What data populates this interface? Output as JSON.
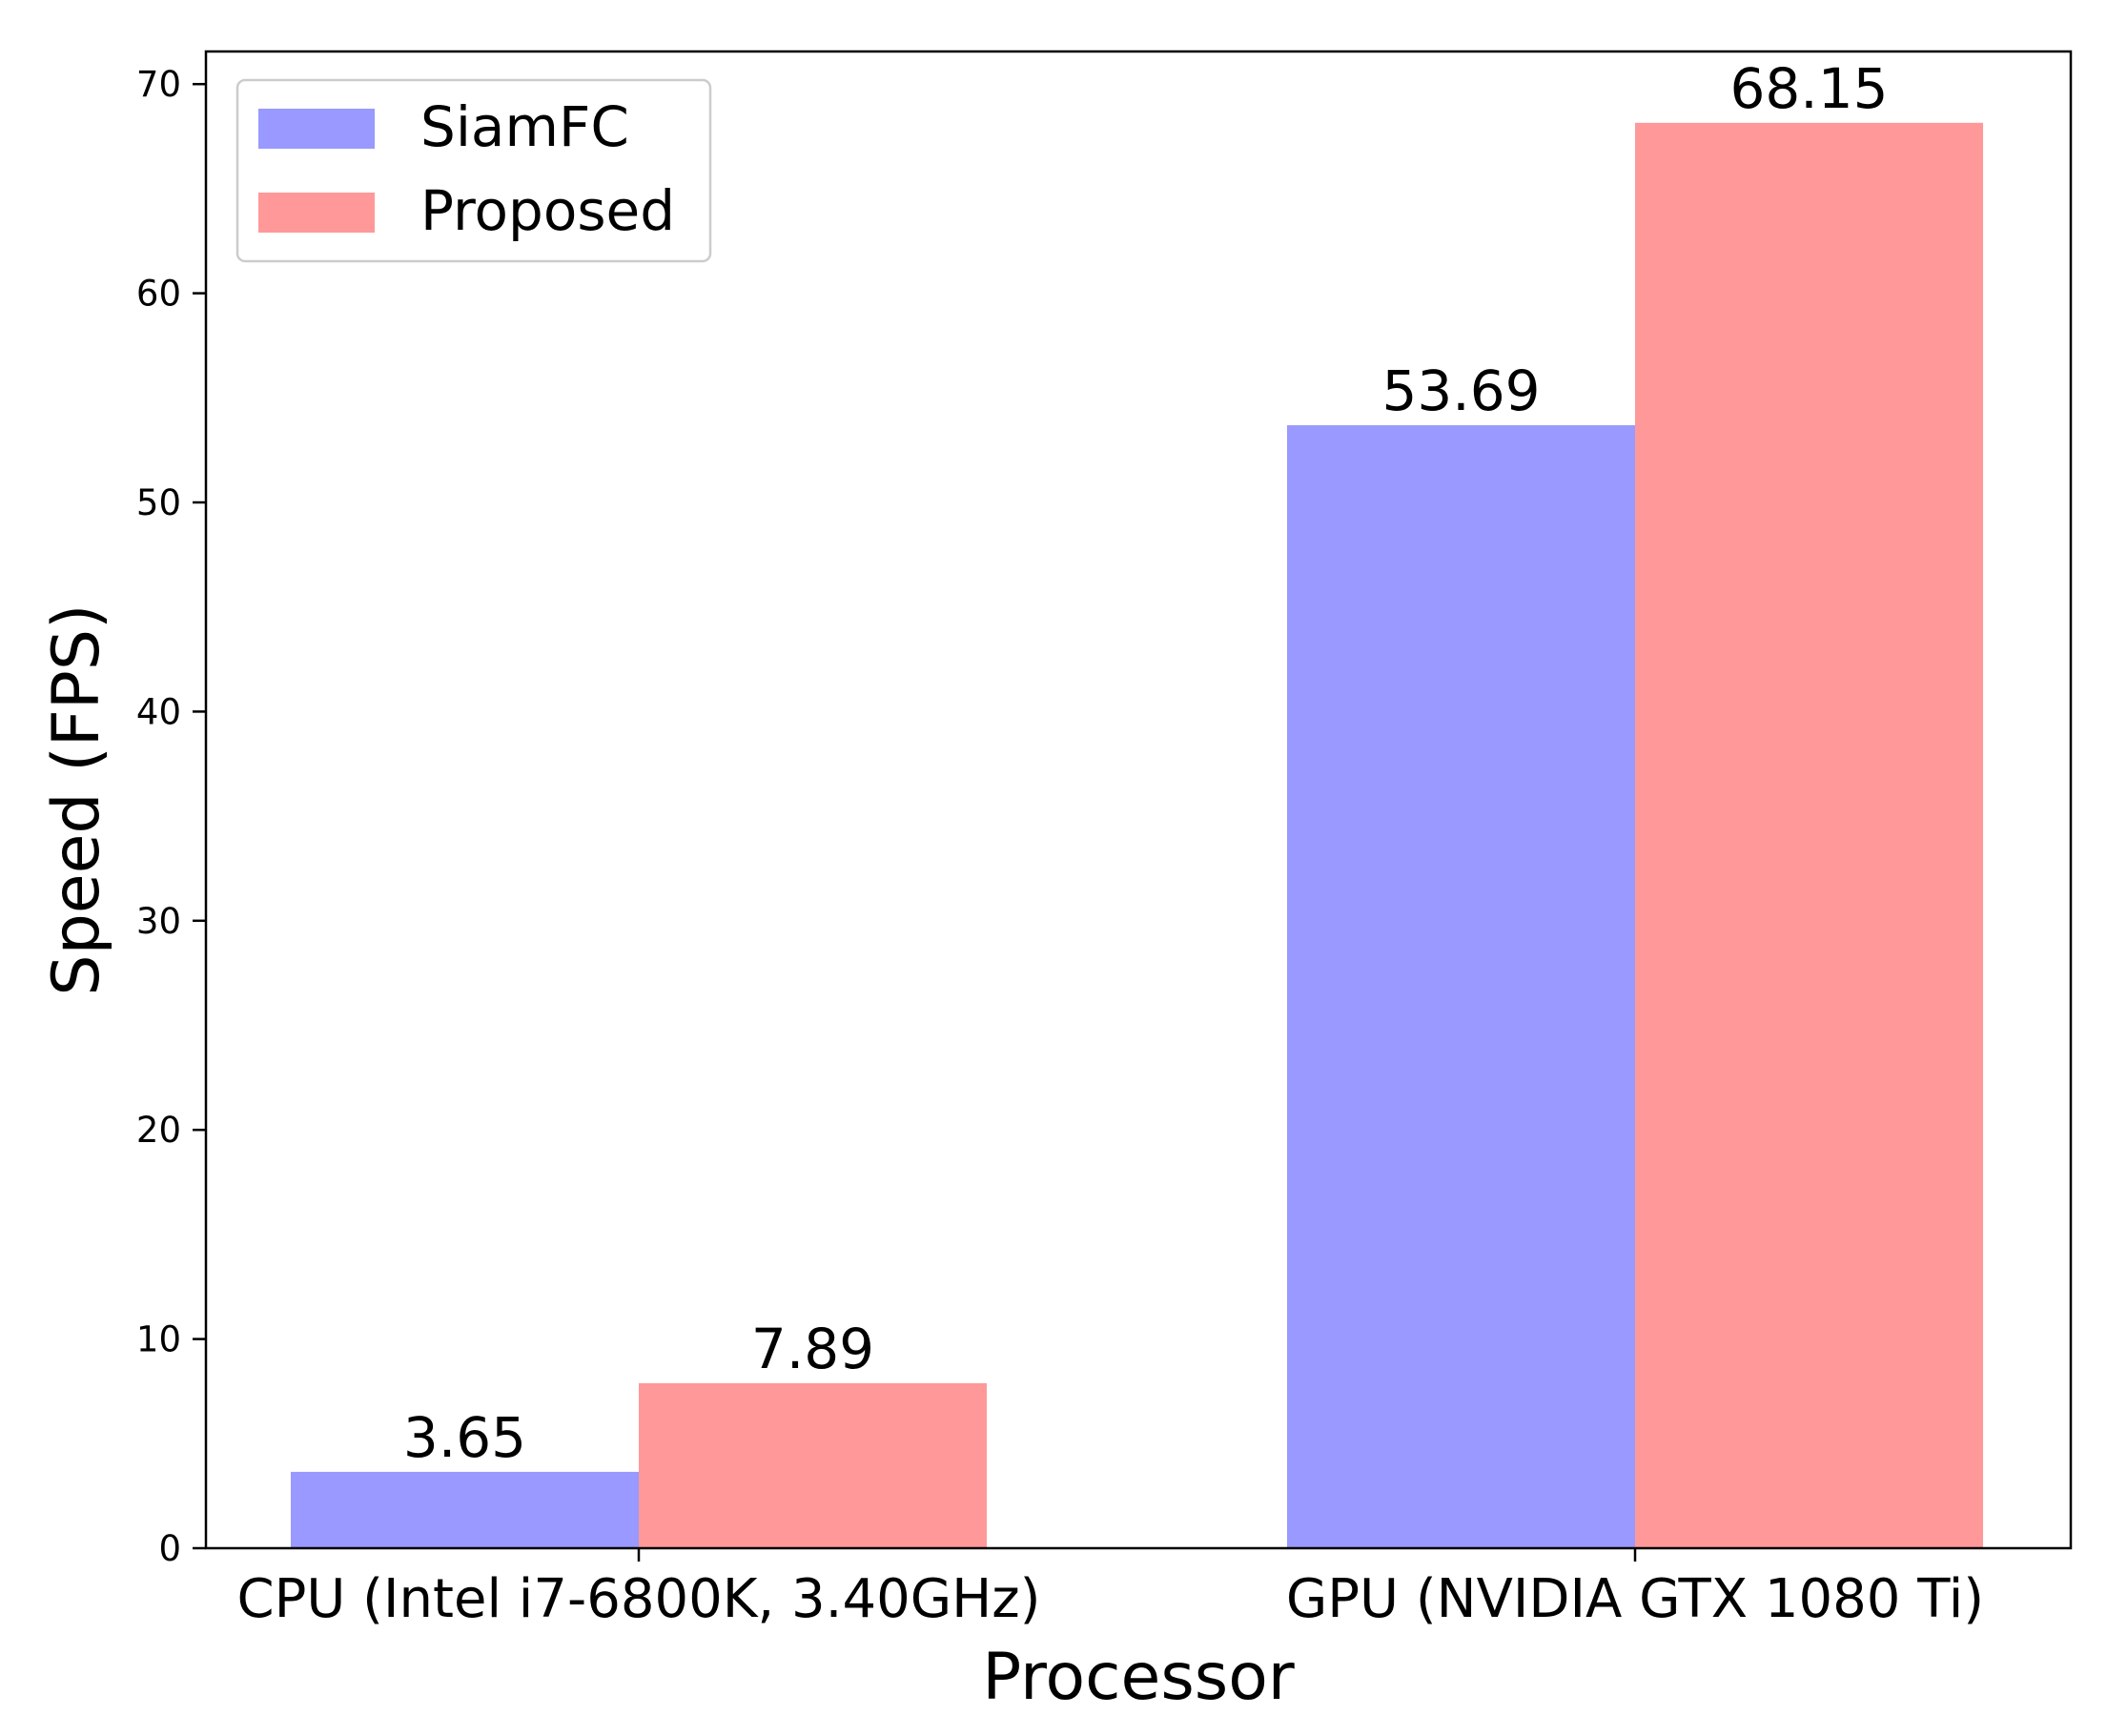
{
  "chart_data": {
    "type": "bar",
    "title": "",
    "xlabel": "Processor",
    "ylabel": "Speed (FPS)",
    "categories": [
      "CPU (Intel i7-6800K, 3.40GHz)",
      "GPU (NVIDIA GTX 1080 Ti)"
    ],
    "series": [
      {
        "name": "SiamFC",
        "values": [
          3.65,
          53.69
        ],
        "labels": [
          "3.65",
          "53.69"
        ],
        "color": "#9999ff"
      },
      {
        "name": "Proposed",
        "values": [
          7.89,
          68.15
        ],
        "labels": [
          "7.89",
          "68.15"
        ],
        "color": "#ff9999"
      }
    ],
    "ylim": [
      0,
      71.56
    ],
    "yticks": [
      0,
      10,
      20,
      30,
      40,
      50,
      60,
      70
    ],
    "ytick_labels": [
      "0",
      "10",
      "20",
      "30",
      "40",
      "50",
      "60",
      "70"
    ],
    "grid": false,
    "legend": "top-left"
  }
}
